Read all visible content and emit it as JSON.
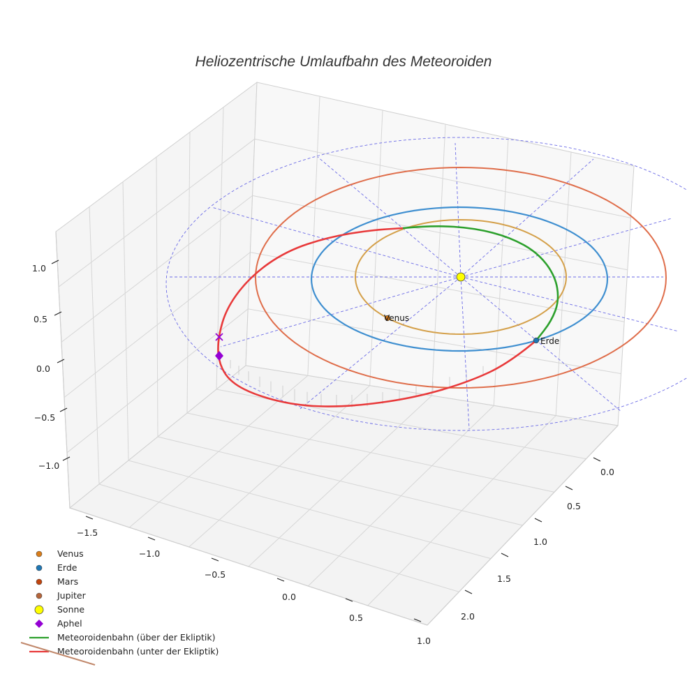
{
  "chart_data": {
    "type": "line",
    "title": "Heliozentrische Umlaufbahn des Meteoroiden",
    "projection": "3d",
    "axes": {
      "x": {
        "ticks": [
          "−1.5",
          "−1.0",
          "−0.5",
          "0.0",
          "0.5",
          "1.0"
        ],
        "range": [
          -1.6,
          1.1
        ]
      },
      "y": {
        "ticks": [
          "0.0",
          "0.5",
          "1.0",
          "1.5",
          "2.0"
        ],
        "range": [
          -0.2,
          2.2
        ]
      },
      "z": {
        "ticks": [
          "1.0",
          "0.5",
          "0.0",
          "−0.5",
          "−1.0"
        ],
        "range": [
          -1.3,
          1.3
        ]
      }
    },
    "grid": true,
    "legend_position": "bottom-left",
    "series": [
      {
        "name": "Venus",
        "kind": "marker",
        "color": "#d97d1a",
        "label": "Venus"
      },
      {
        "name": "Erde",
        "kind": "marker",
        "color": "#1f77b4",
        "label": "Erde"
      },
      {
        "name": "Mars",
        "kind": "marker",
        "color": "#c1440e"
      },
      {
        "name": "Jupiter",
        "kind": "marker",
        "color": "#b5653a"
      },
      {
        "name": "Sonne",
        "kind": "marker",
        "color": "#ffff00"
      },
      {
        "name": "Aphel",
        "kind": "marker",
        "color": "#9400d3"
      },
      {
        "name": "Meteoroidenbahn (über der Ekliptik)",
        "kind": "line",
        "color": "#2ca02c"
      },
      {
        "name": "Meteoroidenbahn (unter der Ekliptik)",
        "kind": "line",
        "color": "#e8393a"
      }
    ],
    "orbits": [
      {
        "body": "Venus",
        "color": "#d4a04a"
      },
      {
        "body": "Erde",
        "color": "#3f8fd0"
      },
      {
        "body": "Mars",
        "color": "#df6d4a"
      }
    ],
    "ecliptic_reference": {
      "color": "#6a6ae6",
      "style": "dashed"
    },
    "jupiter_legend_line_color": "#c0876a"
  }
}
